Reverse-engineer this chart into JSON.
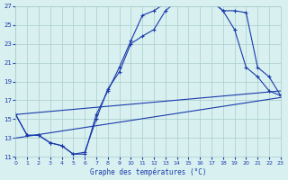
{
  "title": "Graphe des températures (°C)",
  "bg_color": "#d8f0f0",
  "grid_color": "#aacccc",
  "line_color": "#1a3aaa",
  "x_min": 0,
  "x_max": 23,
  "y_min": 11,
  "y_max": 27,
  "y_ticks": [
    11,
    13,
    15,
    17,
    19,
    21,
    23,
    25,
    27
  ],
  "x_ticks": [
    0,
    1,
    2,
    3,
    4,
    5,
    6,
    7,
    8,
    9,
    10,
    11,
    12,
    13,
    14,
    15,
    16,
    17,
    18,
    19,
    20,
    21,
    22,
    23
  ],
  "curve1_x": [
    0,
    1,
    2,
    3,
    4,
    5,
    6,
    7,
    8,
    9,
    10,
    11,
    12,
    13,
    14,
    15,
    16,
    17,
    18,
    19,
    20,
    21,
    22,
    23
  ],
  "curve1_y": [
    15.5,
    13.3,
    13.3,
    12.5,
    12.2,
    11.3,
    11.3,
    15.5,
    18.0,
    20.5,
    23.3,
    26.0,
    26.5,
    27.3,
    27.3,
    27.5,
    28.0,
    27.5,
    26.5,
    26.5,
    26.3,
    20.5,
    19.5,
    17.5
  ],
  "curve2_x": [
    0,
    1,
    2,
    3,
    4,
    5,
    6,
    7,
    8,
    9,
    10,
    11,
    12,
    13,
    14,
    15,
    16,
    17,
    18,
    19,
    20,
    21,
    22,
    23
  ],
  "curve2_y": [
    15.5,
    13.3,
    13.3,
    12.5,
    12.2,
    11.3,
    11.5,
    15.0,
    18.2,
    20.0,
    23.0,
    23.8,
    24.5,
    26.5,
    27.5,
    27.5,
    28.0,
    27.5,
    26.5,
    24.5,
    20.5,
    19.5,
    18.0,
    17.5
  ],
  "line3_x": [
    0,
    23
  ],
  "line3_y": [
    15.5,
    18.0
  ],
  "line4_x": [
    0,
    23
  ],
  "line4_y": [
    13.0,
    17.3
  ]
}
